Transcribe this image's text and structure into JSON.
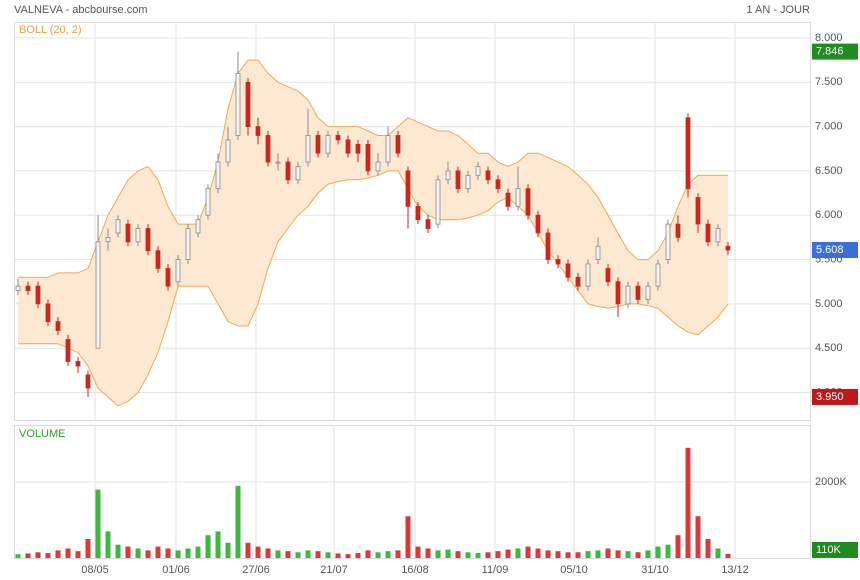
{
  "chart_data": {
    "type": "candlestick",
    "title": "VALNEVA - abcbourse.com",
    "period": "1 AN - JOUR",
    "indicator_label": "BOLL (20, 2)",
    "up_color": "#f4f4f4",
    "up_stroke": "#8a8a8a",
    "down_color": "#c8281e",
    "open": [
      5.15,
      5.2,
      5.2,
      5.0,
      4.8,
      4.6,
      4.35,
      4.2,
      4.5,
      5.7,
      5.8,
      5.9,
      5.7,
      5.85,
      5.6,
      5.4,
      5.25,
      5.5,
      5.8,
      6.0,
      6.3,
      6.6,
      6.9,
      7.5,
      7.0,
      6.9,
      6.6,
      6.6,
      6.4,
      6.6,
      6.9,
      6.7,
      6.9,
      6.85,
      6.8,
      6.8,
      6.5,
      6.6,
      6.9,
      6.5,
      6.1,
      5.95,
      5.9,
      6.4,
      6.5,
      6.3,
      6.45,
      6.5,
      6.4,
      6.25,
      6.1,
      6.3,
      6.0,
      5.8,
      5.5,
      5.45,
      5.3,
      5.2,
      5.5,
      5.4,
      5.25,
      5.0,
      5.2,
      5.05,
      5.2,
      5.5,
      5.9,
      7.1,
      6.2,
      5.9,
      5.7,
      5.65
    ],
    "high": [
      5.28,
      5.25,
      5.25,
      5.05,
      4.85,
      4.65,
      4.4,
      4.25,
      6.0,
      5.85,
      6.0,
      5.95,
      5.9,
      5.9,
      5.65,
      5.45,
      5.55,
      5.9,
      6.0,
      6.35,
      6.7,
      7.0,
      7.846,
      7.55,
      7.1,
      6.95,
      6.7,
      6.65,
      6.6,
      7.2,
      6.95,
      6.95,
      6.95,
      6.9,
      6.85,
      6.85,
      6.7,
      7.0,
      6.95,
      6.55,
      6.15,
      6.0,
      6.45,
      6.6,
      6.55,
      6.5,
      6.6,
      6.55,
      6.45,
      6.3,
      6.55,
      6.35,
      6.05,
      5.85,
      5.55,
      5.5,
      5.35,
      5.5,
      5.75,
      5.45,
      5.3,
      5.25,
      5.25,
      5.25,
      5.5,
      5.95,
      6.0,
      7.15,
      6.25,
      5.95,
      5.9,
      5.7
    ],
    "low": [
      5.1,
      5.1,
      4.95,
      4.75,
      4.65,
      4.3,
      4.22,
      3.95,
      4.5,
      5.6,
      5.75,
      5.65,
      5.65,
      5.55,
      5.35,
      5.15,
      5.2,
      5.45,
      5.75,
      5.95,
      6.25,
      6.55,
      6.85,
      6.9,
      6.8,
      6.55,
      6.5,
      6.35,
      6.35,
      6.55,
      6.65,
      6.65,
      6.8,
      6.65,
      6.6,
      6.45,
      6.45,
      6.55,
      6.65,
      5.85,
      5.9,
      5.8,
      5.85,
      6.35,
      6.25,
      6.25,
      6.4,
      6.35,
      6.25,
      6.05,
      6.05,
      5.95,
      5.75,
      5.45,
      5.4,
      5.25,
      5.15,
      5.15,
      5.45,
      5.2,
      4.85,
      4.95,
      5.0,
      5.0,
      5.15,
      5.45,
      5.7,
      6.2,
      5.8,
      5.65,
      5.65,
      5.55
    ],
    "close": [
      5.2,
      5.15,
      5.0,
      4.8,
      4.7,
      4.35,
      4.3,
      4.05,
      5.7,
      5.75,
      5.95,
      5.7,
      5.85,
      5.6,
      5.4,
      5.2,
      5.5,
      5.85,
      5.95,
      6.3,
      6.6,
      6.85,
      7.6,
      7.0,
      6.9,
      6.6,
      6.6,
      6.4,
      6.55,
      6.9,
      6.7,
      6.9,
      6.85,
      6.7,
      6.7,
      6.5,
      6.6,
      6.9,
      6.7,
      6.1,
      5.95,
      5.85,
      6.4,
      6.5,
      6.3,
      6.45,
      6.55,
      6.4,
      6.3,
      6.1,
      6.3,
      6.0,
      5.8,
      5.5,
      5.45,
      5.3,
      5.2,
      5.45,
      5.65,
      5.25,
      5.0,
      5.2,
      5.05,
      5.2,
      5.45,
      5.9,
      5.75,
      6.3,
      5.9,
      5.7,
      5.85,
      5.608
    ],
    "boll": {
      "fill": "#fde8d2",
      "stroke": "#f0a850",
      "upper": [
        5.3,
        5.3,
        5.3,
        5.3,
        5.35,
        5.35,
        5.35,
        5.4,
        5.7,
        6.0,
        6.2,
        6.4,
        6.5,
        6.55,
        6.4,
        6.1,
        5.9,
        5.9,
        5.9,
        6.2,
        6.6,
        7.2,
        7.6,
        7.75,
        7.75,
        7.6,
        7.5,
        7.45,
        7.4,
        7.3,
        7.1,
        7.0,
        7.0,
        7.0,
        7.0,
        6.95,
        6.9,
        6.9,
        7.0,
        7.1,
        7.05,
        7.0,
        6.95,
        6.95,
        6.9,
        6.8,
        6.7,
        6.7,
        6.6,
        6.55,
        6.6,
        6.7,
        6.7,
        6.65,
        6.6,
        6.55,
        6.45,
        6.35,
        6.2,
        6.0,
        5.8,
        5.6,
        5.5,
        5.5,
        5.6,
        5.8,
        6.1,
        6.35,
        6.45,
        6.45,
        6.45,
        6.45
      ],
      "lower": [
        4.55,
        4.55,
        4.55,
        4.55,
        4.55,
        4.5,
        4.45,
        4.3,
        4.05,
        3.95,
        3.85,
        3.9,
        4.0,
        4.2,
        4.45,
        4.8,
        5.2,
        5.2,
        5.2,
        5.2,
        5.0,
        4.8,
        4.75,
        4.75,
        5.0,
        5.4,
        5.7,
        5.85,
        6.0,
        6.1,
        6.25,
        6.35,
        6.38,
        6.4,
        6.4,
        6.42,
        6.45,
        6.5,
        6.5,
        6.3,
        6.1,
        6.0,
        5.95,
        5.95,
        5.95,
        5.97,
        6.0,
        6.05,
        6.15,
        6.2,
        6.1,
        6.0,
        5.8,
        5.6,
        5.45,
        5.3,
        5.15,
        5.0,
        4.97,
        4.95,
        4.97,
        5.0,
        5.0,
        4.98,
        4.95,
        4.85,
        4.75,
        4.68,
        4.65,
        4.75,
        4.85,
        5.0
      ]
    },
    "xlim": [
      -0.3,
      79.2
    ],
    "xticks": [
      {
        "value": 7.7,
        "label": "08/05"
      },
      {
        "value": 15.8,
        "label": "01/06"
      },
      {
        "value": 23.8,
        "label": "27/06"
      },
      {
        "value": 31.6,
        "label": "21/07"
      },
      {
        "value": 39.7,
        "label": "16/08"
      },
      {
        "value": 47.7,
        "label": "11/09"
      },
      {
        "value": 55.6,
        "label": "05/10"
      },
      {
        "value": 63.7,
        "label": "31/10"
      },
      {
        "value": 71.7,
        "label": "13/12"
      }
    ],
    "ylim": [
      3.69,
      8.18
    ],
    "yticks": [
      {
        "value": 4,
        "label": "4.000"
      },
      {
        "value": 4.5,
        "label": "4.500"
      },
      {
        "value": 5,
        "label": "5.000"
      },
      {
        "value": 5.5,
        "label": "5.500"
      },
      {
        "value": 6,
        "label": "6.000"
      },
      {
        "value": 6.5,
        "label": "6.500"
      },
      {
        "value": 7,
        "label": "7.000"
      },
      {
        "value": 7.5,
        "label": "7.500"
      },
      {
        "value": 8,
        "label": "8.000"
      }
    ],
    "grid": true,
    "markers": [
      {
        "value": 7.846,
        "label": "7.846",
        "color": "#1e8c1e"
      },
      {
        "value": 5.608,
        "label": "5.608",
        "color": "#3a6fd8"
      },
      {
        "value": 3.95,
        "label": "3.950",
        "color": "#c01818"
      }
    ],
    "volume": {
      "label": "VOLUME",
      "up_color": "#3cb83c",
      "down_color": "#d83a3a",
      "values": [
        100,
        120,
        150,
        130,
        200,
        250,
        180,
        500,
        1800,
        700,
        350,
        300,
        250,
        200,
        300,
        250,
        200,
        250,
        300,
        600,
        700,
        400,
        1900,
        400,
        300,
        250,
        200,
        180,
        150,
        200,
        180,
        150,
        120,
        100,
        130,
        200,
        150,
        180,
        200,
        1100,
        300,
        250,
        200,
        220,
        180,
        150,
        130,
        150,
        180,
        220,
        250,
        300,
        250,
        200,
        180,
        150,
        150,
        180,
        200,
        250,
        200,
        180,
        150,
        200,
        300,
        350,
        600,
        2900,
        1100,
        500,
        250,
        110
      ],
      "ylim": [
        0,
        3500
      ],
      "yticks": [
        {
          "value": 2000,
          "label": "2000K"
        }
      ],
      "last": {
        "value": 110,
        "label": "110K",
        "color": "#1e8c1e"
      }
    }
  }
}
